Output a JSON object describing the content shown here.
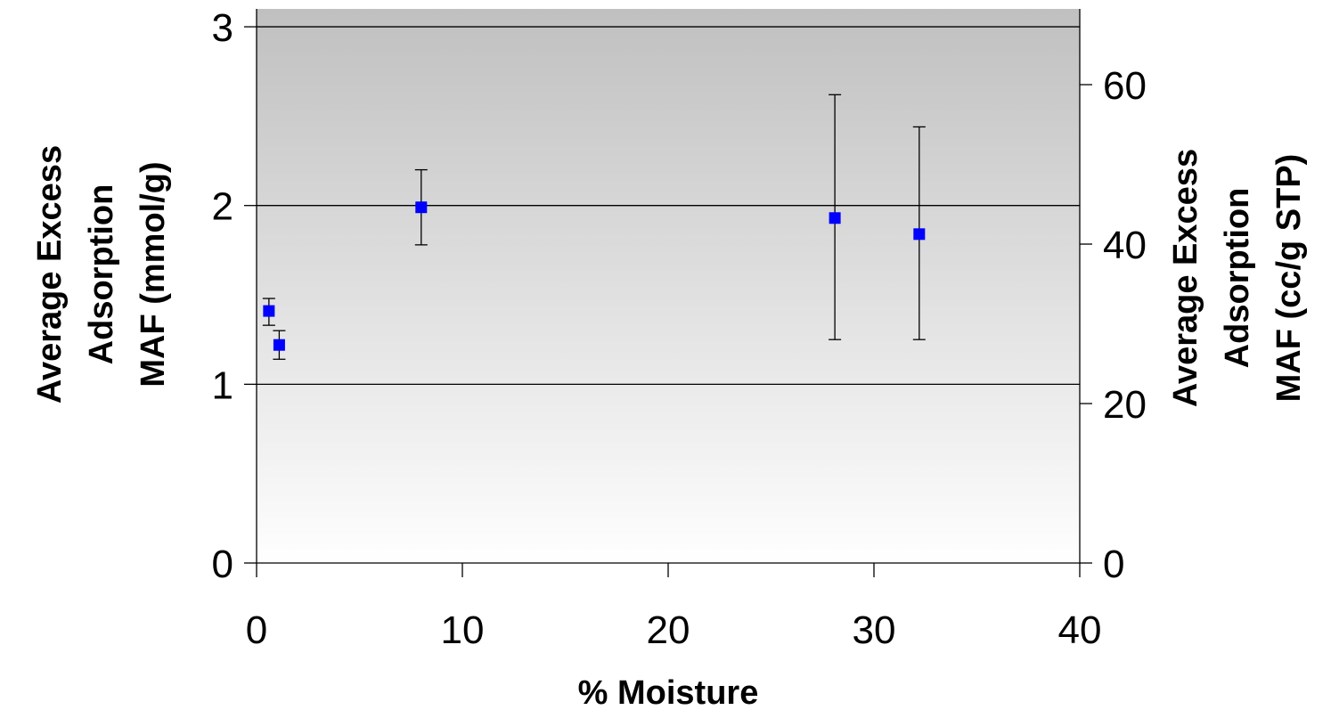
{
  "chart_data": {
    "type": "scatter",
    "xlabel": "% Moisture",
    "ylabel_lines": [
      "Average Excess",
      "Adsorption",
      "MAF (mmol/g)"
    ],
    "y2label_lines": [
      "Average Excess",
      "Adsorption",
      "MAF (cc/g STP)"
    ],
    "xlim": [
      0,
      40
    ],
    "ylim": [
      0,
      3.1
    ],
    "y2lim": [
      0,
      69.5
    ],
    "x_ticks": [
      0,
      10,
      20,
      30,
      40
    ],
    "y_ticks": [
      0,
      1,
      2,
      3
    ],
    "y2_ticks": [
      0,
      20,
      40,
      60
    ],
    "grid": "horizontal major lines at 1, 2, 3",
    "background": "vertical gradient from light gray at top to white at bottom",
    "marker_color": "#0000ff",
    "points": [
      {
        "x": 0.6,
        "y": 1.41,
        "err_low": 1.33,
        "err_high": 1.48
      },
      {
        "x": 1.1,
        "y": 1.22,
        "err_low": 1.14,
        "err_high": 1.3
      },
      {
        "x": 8.0,
        "y": 1.99,
        "err_low": 1.78,
        "err_high": 2.2
      },
      {
        "x": 28.1,
        "y": 1.93,
        "err_low": 1.25,
        "err_high": 2.62
      },
      {
        "x": 32.2,
        "y": 1.84,
        "err_low": 1.25,
        "err_high": 2.44
      }
    ]
  }
}
